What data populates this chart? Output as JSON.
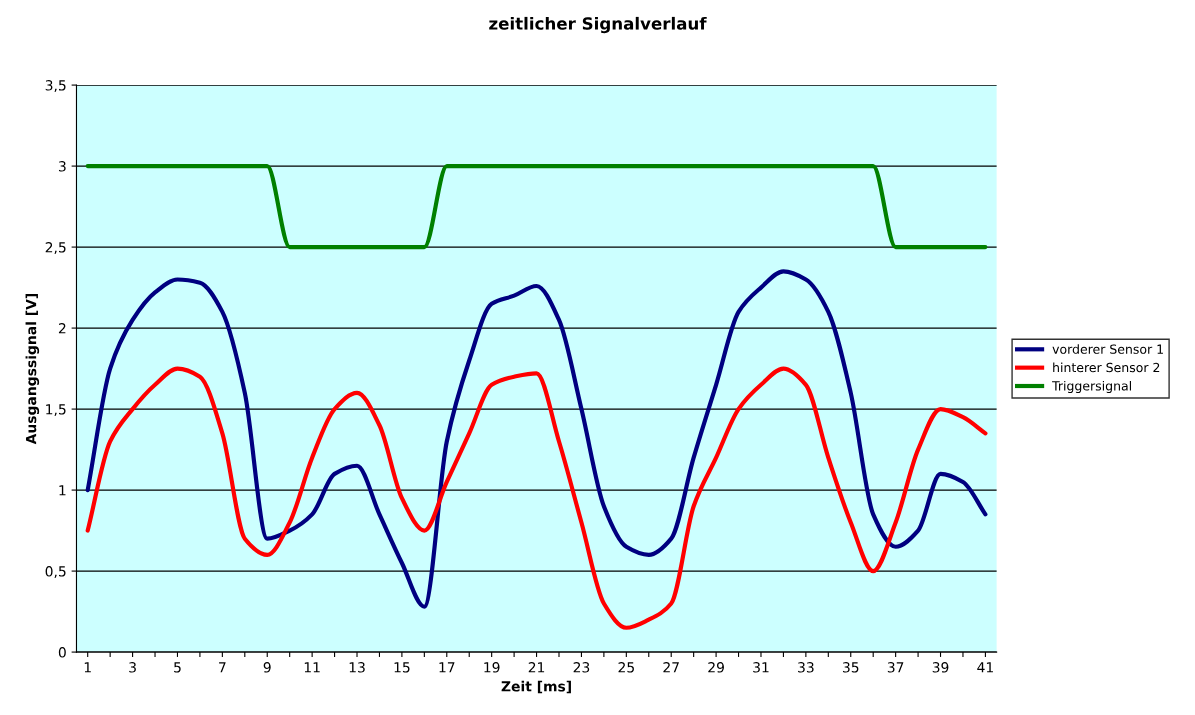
{
  "chart_data": {
    "type": "line",
    "title": "zeitlicher Signalverlauf",
    "xlabel": "Zeit [ms]",
    "ylabel": "Ausgangssignal [V]",
    "categories": [
      "1",
      null,
      "3",
      null,
      "5",
      null,
      "7",
      null,
      "9",
      null,
      "11",
      null,
      "13",
      null,
      "15",
      null,
      "17",
      null,
      "19",
      null,
      "21",
      null,
      "23",
      null,
      "25",
      null,
      "27",
      null,
      "29",
      null,
      "31",
      null,
      "33",
      null,
      "35",
      null,
      "37",
      null,
      "39",
      null,
      "41"
    ],
    "series": [
      {
        "name": "vorderer Sensor 1",
        "color": "#000080",
        "values": [
          1.0,
          1.75,
          2.05,
          2.22,
          2.3,
          2.28,
          2.1,
          1.6,
          0.7,
          0.75,
          0.85,
          1.1,
          1.15,
          0.85,
          0.55,
          0.28,
          1.3,
          1.8,
          2.15,
          2.2,
          2.26,
          2.05,
          1.5,
          0.9,
          0.65,
          0.6,
          0.7,
          1.2,
          1.65,
          2.1,
          2.25,
          2.35,
          2.3,
          2.1,
          1.6,
          0.85,
          0.65,
          0.75,
          1.1,
          1.05,
          0.85
        ]
      },
      {
        "name": "hinterer Sensor 2",
        "color": "#ff0000",
        "values": [
          0.75,
          1.3,
          1.5,
          1.65,
          1.75,
          1.7,
          1.35,
          0.7,
          0.6,
          0.8,
          1.2,
          1.5,
          1.6,
          1.4,
          0.95,
          0.75,
          1.05,
          1.35,
          1.65,
          1.7,
          1.72,
          1.3,
          0.8,
          0.3,
          0.15,
          0.2,
          0.3,
          0.9,
          1.2,
          1.5,
          1.65,
          1.75,
          1.65,
          1.2,
          0.8,
          0.5,
          0.8,
          1.25,
          1.5,
          1.45,
          1.35
        ]
      },
      {
        "name": "Triggersignal",
        "color": "#008000",
        "values": [
          3,
          3,
          3,
          3,
          3,
          3,
          3,
          3,
          3,
          2.5,
          2.5,
          2.5,
          2.5,
          2.5,
          2.5,
          2.5,
          3,
          3,
          3,
          3,
          3,
          3,
          3,
          3,
          3,
          3,
          3,
          3,
          3,
          3,
          3,
          3,
          3,
          3,
          3,
          3,
          2.5,
          2.5,
          2.5,
          2.5,
          2.5
        ]
      }
    ],
    "ylim": [
      0,
      3.5
    ],
    "yticks": [
      {
        "value": 0,
        "label": "0"
      },
      {
        "value": 0.5,
        "label": "0,5"
      },
      {
        "value": 1,
        "label": "1"
      },
      {
        "value": 1.5,
        "label": "1,5"
      },
      {
        "value": 2,
        "label": "2"
      },
      {
        "value": 2.5,
        "label": "2,5"
      },
      {
        "value": 3,
        "label": "3"
      },
      {
        "value": 3.5,
        "label": "3,5"
      }
    ],
    "grid": "y",
    "legend": "right",
    "line_style": "solid",
    "marker": "none"
  }
}
